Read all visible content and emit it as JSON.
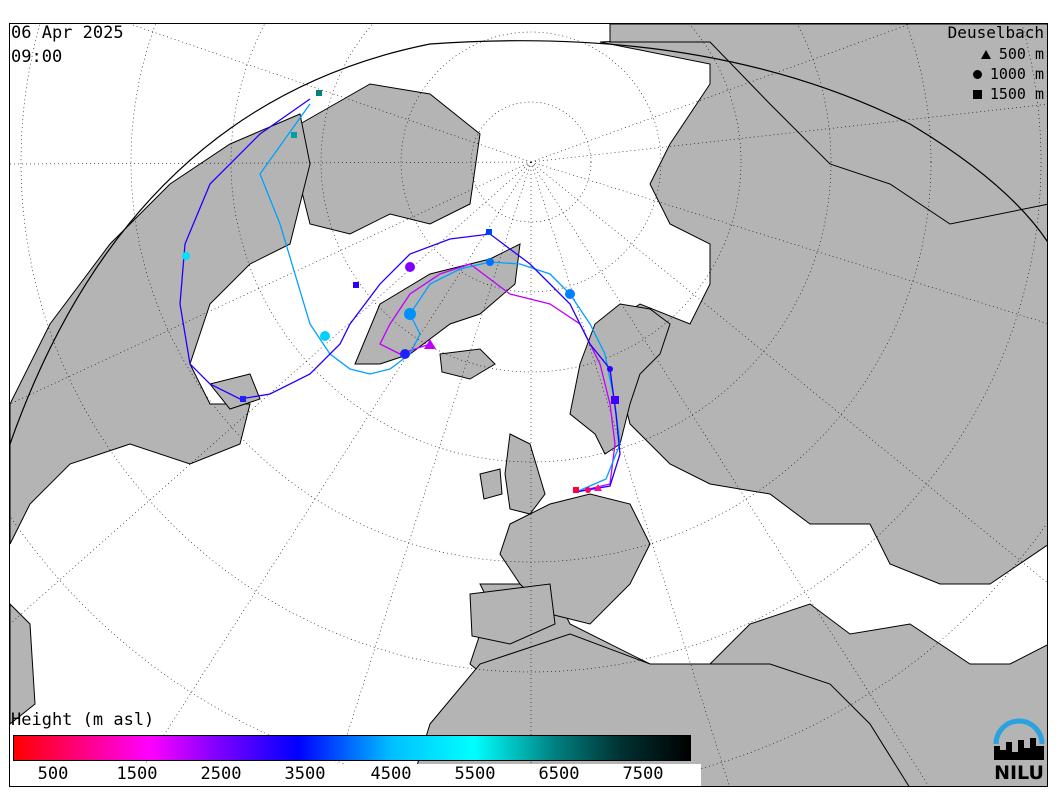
{
  "date": "06 Apr 2025",
  "time": "09:00",
  "station": "Deuselbach",
  "marker_legend": [
    {
      "symbol": "triangle",
      "label": "500 m"
    },
    {
      "symbol": "circle",
      "label": "1000 m"
    },
    {
      "symbol": "square",
      "label": "1500 m"
    }
  ],
  "colorbar": {
    "title": "Height (m asl)",
    "ticks": [
      "500",
      "1500",
      "2500",
      "3500",
      "4500",
      "5500",
      "6500",
      "7500"
    ]
  },
  "logo": {
    "text": "NILU"
  },
  "colors": {
    "land": "#b4b4b4",
    "ocean": "#ffffff",
    "border": "#000000"
  },
  "trajectories": [
    {
      "icon": "triangle-marker",
      "color_hint": "magenta",
      "start_height": "500 m"
    },
    {
      "icon": "circle-marker",
      "color_hint": "blue",
      "start_height": "1000 m"
    },
    {
      "icon": "square-marker",
      "color_hint": "purple",
      "start_height": "1500 m"
    }
  ]
}
